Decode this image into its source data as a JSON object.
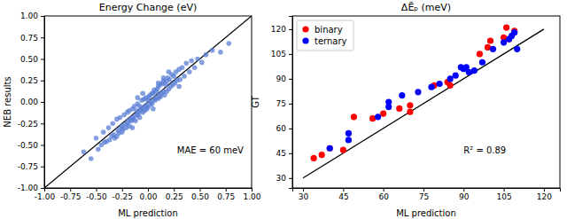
{
  "chart_data": [
    {
      "type": "scatter",
      "title": "Energy Change (eV)",
      "x_label": "ML prediction",
      "y_label": "NEB results",
      "xlim": [
        -1,
        1
      ],
      "ylim": [
        -1,
        1
      ],
      "xticks": [
        {
          "value": -1,
          "label": "-1.00"
        },
        {
          "value": -0.75,
          "label": "-0.75"
        },
        {
          "value": -0.5,
          "label": "-0.50"
        },
        {
          "value": -0.25,
          "label": "-0.25"
        },
        {
          "value": 0,
          "label": "0.00"
        },
        {
          "value": 0.25,
          "label": "0.25"
        },
        {
          "value": 0.5,
          "label": "0.50"
        },
        {
          "value": 0.75,
          "label": "0.75"
        },
        {
          "value": 1,
          "label": "1.00"
        }
      ],
      "yticks": [
        {
          "value": -1,
          "label": "-1.00"
        },
        {
          "value": -0.75,
          "label": "-0.75"
        },
        {
          "value": -0.5,
          "label": "-0.50"
        },
        {
          "value": -0.25,
          "label": "-0.25"
        },
        {
          "value": 0,
          "label": "0.00"
        },
        {
          "value": 0.25,
          "label": "0.25"
        },
        {
          "value": 0.5,
          "label": "0.50"
        },
        {
          "value": 0.75,
          "label": "0.75"
        },
        {
          "value": 1,
          "label": "1.00"
        }
      ],
      "color": "#5b7fd6",
      "marker": "circle",
      "x": [
        -0.62,
        -0.55,
        -0.5,
        -0.48,
        -0.45,
        -0.43,
        -0.42,
        -0.4,
        -0.38,
        -0.37,
        -0.35,
        -0.34,
        -0.33,
        -0.32,
        -0.3,
        -0.29,
        -0.28,
        -0.27,
        -0.26,
        -0.25,
        -0.24,
        -0.23,
        -0.22,
        -0.21,
        -0.2,
        -0.2,
        -0.19,
        -0.18,
        -0.18,
        -0.17,
        -0.16,
        -0.15,
        -0.15,
        -0.14,
        -0.13,
        -0.12,
        -0.12,
        -0.11,
        -0.1,
        -0.1,
        -0.09,
        -0.08,
        -0.08,
        -0.07,
        -0.06,
        -0.06,
        -0.05,
        -0.04,
        -0.04,
        -0.03,
        -0.02,
        -0.02,
        -0.01,
        0,
        0,
        0.01,
        0.02,
        0.02,
        0.03,
        0.04,
        0.04,
        0.05,
        0.06,
        0.06,
        0.07,
        0.08,
        0.08,
        0.09,
        0.1,
        0.1,
        0.11,
        0.12,
        0.12,
        0.13,
        0.14,
        0.15,
        0.15,
        0.16,
        0.17,
        0.18,
        0.18,
        0.19,
        0.2,
        0.21,
        0.22,
        0.23,
        0.24,
        0.25,
        0.26,
        0.27,
        0.28,
        0.3,
        0.31,
        0.33,
        0.35,
        0.37,
        0.4,
        0.42,
        0.45,
        0.48,
        0.52,
        0.56,
        0.62,
        0.7,
        0.78,
        -0.3,
        -0.25,
        -0.15,
        -0.1,
        -0.05,
        0.05,
        0.1,
        0.15,
        0.2,
        0.3
      ],
      "values": [
        -0.58,
        -0.66,
        -0.42,
        -0.55,
        -0.5,
        -0.35,
        -0.47,
        -0.46,
        -0.3,
        -0.44,
        -0.4,
        -0.25,
        -0.38,
        -0.42,
        -0.2,
        -0.33,
        -0.36,
        -0.18,
        -0.3,
        -0.28,
        -0.32,
        -0.15,
        -0.26,
        -0.3,
        -0.12,
        -0.25,
        -0.22,
        -0.28,
        -0.1,
        -0.2,
        -0.22,
        -0.08,
        -0.18,
        -0.2,
        -0.05,
        -0.16,
        -0.22,
        -0.1,
        -0.02,
        -0.15,
        -0.13,
        -0.05,
        -0.18,
        -0.1,
        0.02,
        -0.08,
        -0.12,
        0.03,
        -0.06,
        -0.1,
        0.05,
        -0.04,
        -0.08,
        0.02,
        -0.06,
        0.06,
        -0.03,
        0.08,
        0,
        0.1,
        -0.02,
        0.1,
        0.03,
        0.14,
        0.02,
        0.12,
        0.05,
        0.15,
        0.04,
        0.18,
        0.08,
        0.2,
        0.06,
        0.1,
        0.22,
        0.12,
        0.25,
        0.08,
        0.2,
        0.24,
        0.12,
        0.28,
        0.15,
        0.26,
        0.18,
        0.32,
        0.2,
        0.3,
        0.22,
        0.35,
        0.25,
        0.38,
        0.26,
        0.4,
        0.3,
        0.45,
        0.35,
        0.48,
        0.4,
        0.5,
        0.46,
        0.55,
        0.6,
        0.58,
        0.68,
        -0.4,
        -0.35,
        -0.3,
        0.05,
        0.1,
        -0.08,
        0.22,
        0.28,
        0.35,
        0.18
      ],
      "reference_line": {
        "x": [
          -1,
          1
        ],
        "y": [
          -1,
          1
        ]
      },
      "annotations": [
        "MAE = 60 meV"
      ]
    },
    {
      "type": "scatter",
      "title": "ΔĒₚ (meV)",
      "x_label": "ML prediction",
      "y_label": "GT",
      "xlim": [
        26,
        126
      ],
      "ylim": [
        24,
        128
      ],
      "xticks": [
        30,
        45,
        60,
        75,
        90,
        105,
        120
      ],
      "yticks": [
        30,
        45,
        60,
        75,
        90,
        105,
        120
      ],
      "legend": "upper left",
      "marker": "circle",
      "series": [
        {
          "name": "binary",
          "color": "#ff0000",
          "x": [
            34,
            37,
            40,
            45,
            49,
            60,
            66,
            70,
            70,
            79,
            84,
            85,
            96,
            99,
            100,
            105,
            106,
            107,
            109,
            56
          ],
          "values": [
            42,
            44,
            48,
            47,
            67,
            69,
            72,
            70,
            74,
            86,
            88,
            86,
            105,
            109,
            113,
            115,
            121,
            114,
            119,
            66
          ]
        },
        {
          "name": "ternary",
          "color": "#0000ff",
          "x": [
            40,
            47,
            47,
            58,
            62,
            62,
            67,
            73,
            78,
            81,
            87,
            89,
            90,
            91,
            92,
            94,
            97,
            101,
            105,
            108,
            109,
            110,
            107,
            85
          ],
          "values": [
            48,
            53,
            57,
            67,
            73,
            76,
            80,
            82,
            85,
            87,
            92,
            97,
            96,
            97,
            94,
            95,
            100,
            108,
            112,
            116,
            118,
            108,
            114,
            90
          ]
        }
      ],
      "reference_line": {
        "x": [
          30,
          120
        ],
        "y": [
          30,
          120
        ]
      },
      "annotations": [
        "R² = 0.89"
      ]
    }
  ]
}
